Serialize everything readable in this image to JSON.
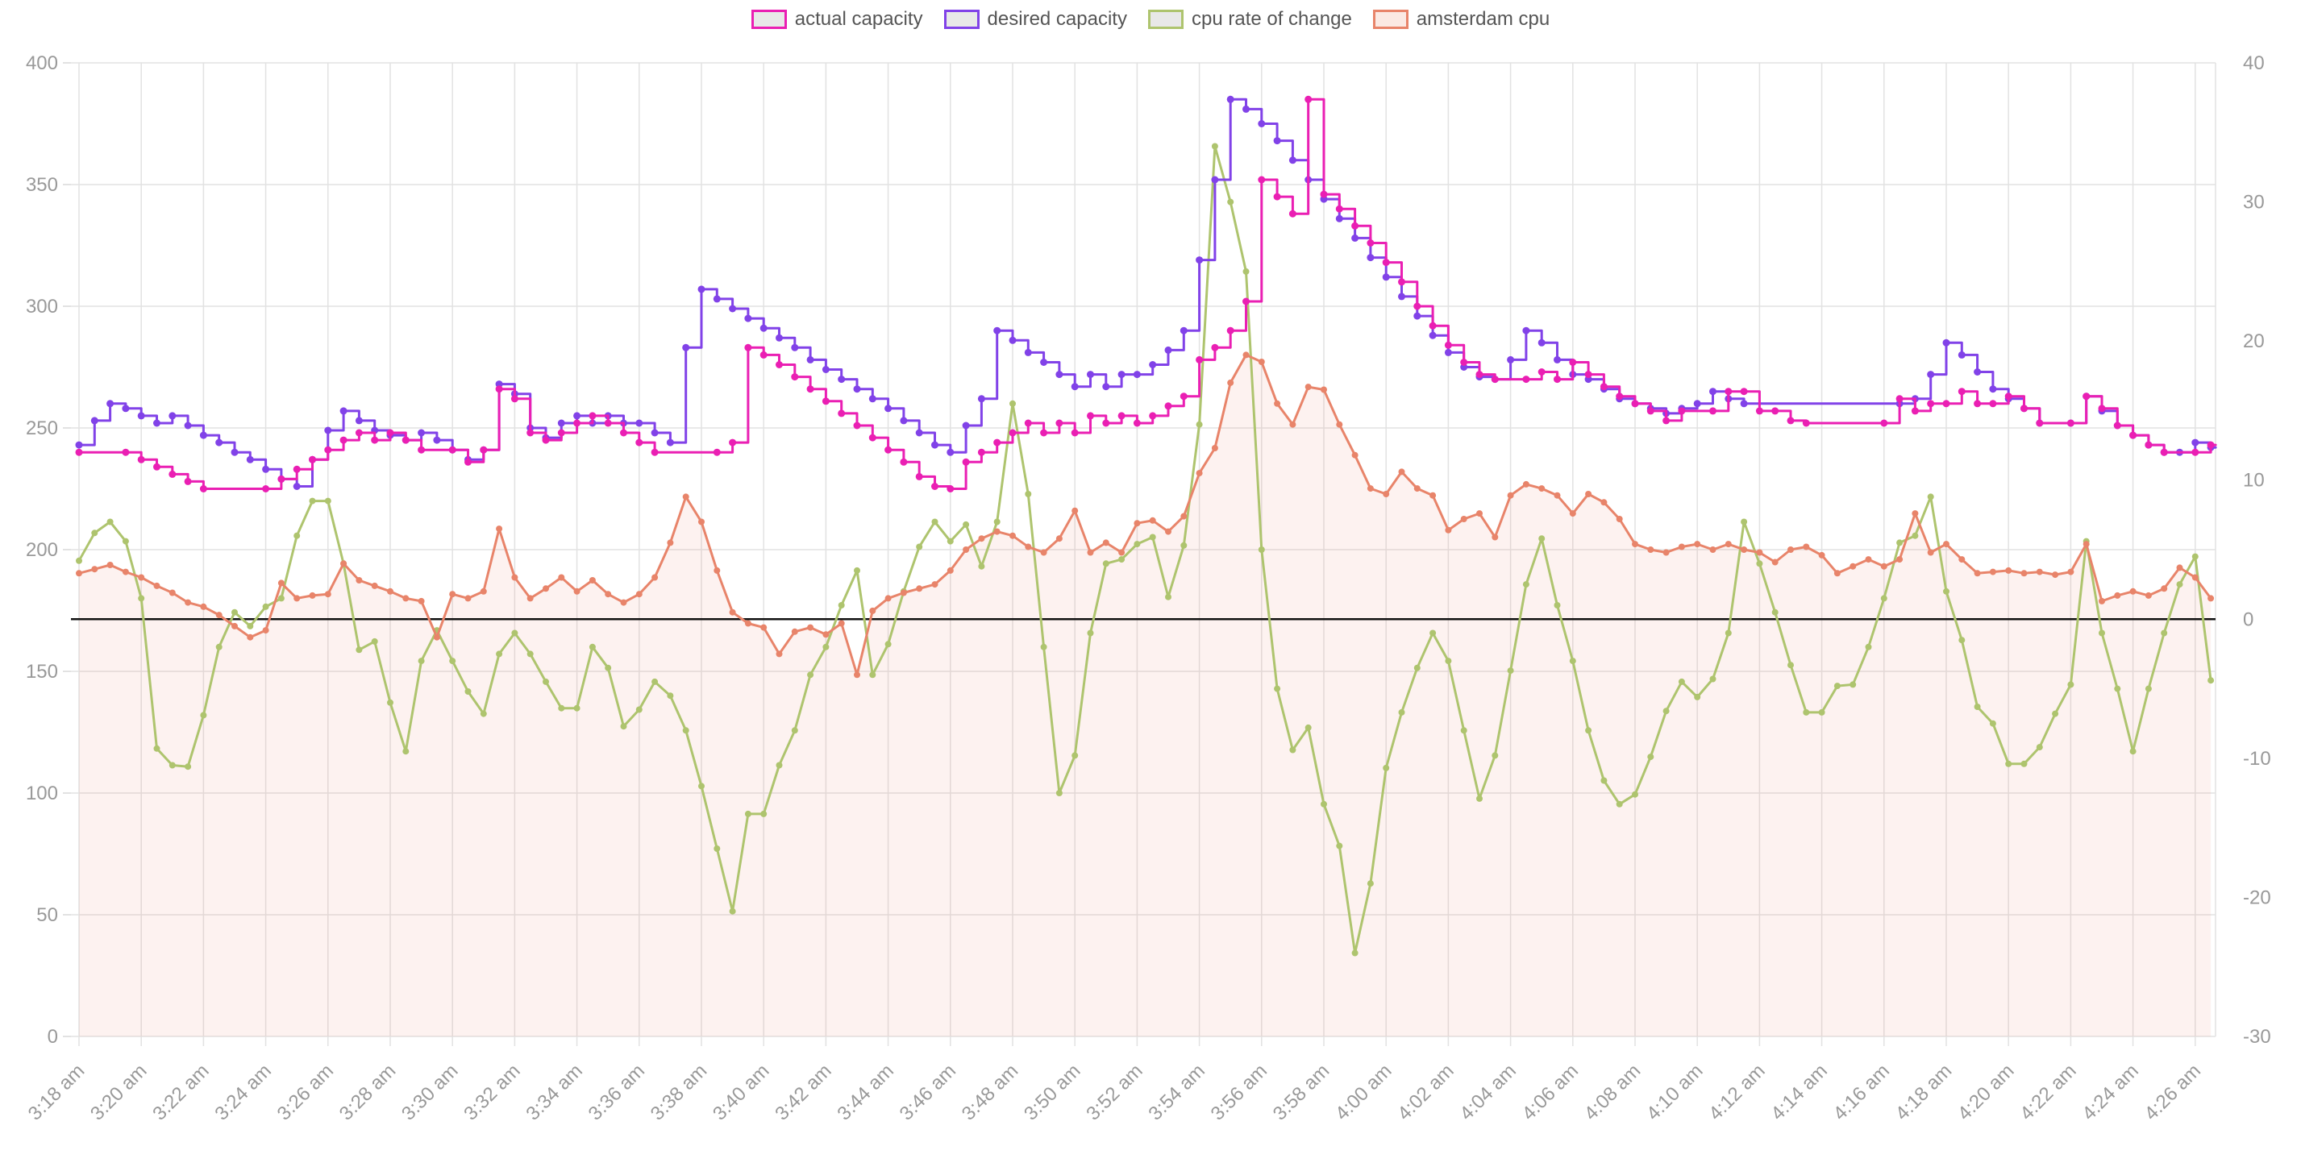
{
  "legend": {
    "items": [
      {
        "id": "actual",
        "label": "actual capacity",
        "color": "#ea1fb3",
        "swatch_bg": "#e8e8e8"
      },
      {
        "id": "desired",
        "label": "desired capacity",
        "color": "#8142e8",
        "swatch_bg": "#e8e8e8"
      },
      {
        "id": "cpu_rate",
        "label": "cpu rate of change",
        "color": "#aec46e",
        "swatch_bg": "#e8e8e8"
      },
      {
        "id": "amsterdam",
        "label": "amsterdam cpu",
        "color": "#e8846a",
        "swatch_bg": "#fbe9e3"
      }
    ]
  },
  "colors": {
    "grid": "#e2e2e2",
    "zero_line": "#111111",
    "axis_text": "#999999",
    "area_fill": "rgba(232,132,106,0.10)"
  },
  "chart_data": {
    "type": "line",
    "title": "",
    "x_start_label": "3:18 am",
    "x_interval_seconds": 30,
    "x_tick_labels": [
      "3:18 am",
      "3:20 am",
      "3:22 am",
      "3:24 am",
      "3:26 am",
      "3:28 am",
      "3:30 am",
      "3:32 am",
      "3:34 am",
      "3:36 am",
      "3:38 am",
      "3:40 am",
      "3:42 am",
      "3:44 am",
      "3:46 am",
      "3:48 am",
      "3:50 am",
      "3:52 am",
      "3:54 am",
      "3:56 am",
      "3:58 am",
      "4:00 am",
      "4:02 am",
      "4:04 am",
      "4:06 am",
      "4:08 am",
      "4:10 am",
      "4:12 am",
      "4:14 am",
      "4:16 am",
      "4:18 am",
      "4:20 am",
      "4:22 am",
      "4:24 am",
      "4:26 am"
    ],
    "ylim_left": [
      0,
      400
    ],
    "yticks_left": [
      0,
      50,
      100,
      150,
      200,
      250,
      300,
      350,
      400
    ],
    "ylim_right": [
      -30,
      40
    ],
    "yticks_right": [
      -30,
      -20,
      -10,
      0,
      10,
      20,
      30,
      40
    ],
    "grid": true,
    "zero_line_right": 0,
    "legend_position": "top-center",
    "series": [
      {
        "name": "actual capacity",
        "axis": "left",
        "style": "step",
        "color": "#ea1fb3",
        "values": [
          240,
          240,
          240,
          240,
          237,
          234,
          231,
          228,
          225,
          225,
          225,
          225,
          225,
          229,
          233,
          237,
          241,
          245,
          248,
          245,
          248,
          245,
          241,
          241,
          241,
          236,
          241,
          266,
          262,
          248,
          245,
          248,
          252,
          255,
          252,
          248,
          244,
          240,
          240,
          240,
          240,
          240,
          244,
          283,
          280,
          276,
          271,
          266,
          261,
          256,
          251,
          246,
          241,
          236,
          230,
          226,
          225,
          236,
          240,
          244,
          248,
          252,
          248,
          252,
          248,
          255,
          252,
          255,
          252,
          255,
          259,
          263,
          278,
          283,
          290,
          302,
          352,
          345,
          338,
          385,
          346,
          340,
          333,
          326,
          318,
          310,
          300,
          292,
          284,
          277,
          272,
          270,
          270,
          270,
          273,
          270,
          277,
          272,
          267,
          263,
          260,
          257,
          253,
          257,
          257,
          257,
          265,
          265,
          257,
          257,
          253,
          252,
          252,
          252,
          252,
          252,
          252,
          262,
          257,
          260,
          260,
          265,
          260,
          260,
          263,
          258,
          252,
          252,
          252,
          263,
          258,
          251,
          247,
          243,
          240,
          240,
          240,
          243
        ]
      },
      {
        "name": "desired capacity",
        "axis": "left",
        "style": "step",
        "color": "#8142e8",
        "values": [
          243,
          253,
          260,
          258,
          255,
          252,
          255,
          251,
          247,
          244,
          240,
          237,
          233,
          229,
          226,
          237,
          249,
          257,
          253,
          249,
          247,
          245,
          248,
          245,
          241,
          237,
          241,
          268,
          264,
          250,
          246,
          252,
          255,
          252,
          255,
          252,
          252,
          248,
          244,
          283,
          307,
          303,
          299,
          295,
          291,
          287,
          283,
          278,
          274,
          270,
          266,
          262,
          258,
          253,
          248,
          243,
          240,
          251,
          262,
          290,
          286,
          281,
          277,
          272,
          267,
          272,
          267,
          272,
          272,
          276,
          282,
          290,
          319,
          352,
          385,
          381,
          375,
          368,
          360,
          352,
          344,
          336,
          328,
          320,
          312,
          304,
          296,
          288,
          281,
          275,
          271,
          270,
          278,
          290,
          285,
          278,
          272,
          270,
          266,
          262,
          260,
          258,
          256,
          258,
          260,
          265,
          262,
          260,
          260,
          260,
          260,
          260,
          260,
          260,
          260,
          260,
          260,
          260,
          262,
          272,
          285,
          280,
          273,
          266,
          262,
          258,
          252,
          252,
          252,
          263,
          257,
          251,
          247,
          243,
          240,
          240,
          244,
          242
        ]
      },
      {
        "name": "cpu rate of change",
        "axis": "right",
        "style": "line",
        "color": "#aec46e",
        "values": [
          4.2,
          6.2,
          7,
          5.6,
          1.5,
          -9.3,
          -10.5,
          -10.6,
          -6.9,
          -2,
          0.5,
          -0.5,
          0.9,
          1.5,
          6,
          8.5,
          8.5,
          4,
          -2.2,
          -1.6,
          -6,
          -9.5,
          -3,
          -0.8,
          -3,
          -5.2,
          -6.8,
          -2.5,
          -1,
          -2.5,
          -4.5,
          -6.4,
          -6.4,
          -2,
          -3.5,
          -7.7,
          -6.5,
          -4.5,
          -5.5,
          -8,
          -12,
          -16.5,
          -21,
          -14,
          -14,
          -10.5,
          -8,
          -4,
          -2,
          1,
          3.5,
          -4,
          -1.8,
          2,
          5.2,
          7,
          5.6,
          6.8,
          3.8,
          7,
          15.5,
          9,
          -2,
          -12.5,
          -9.8,
          -1,
          4,
          4.3,
          5.4,
          5.9,
          1.6,
          5.3,
          14,
          34,
          30,
          25,
          5,
          -5,
          -9.4,
          -7.8,
          -13.3,
          -16.3,
          -24,
          -19,
          -10.7,
          -6.7,
          -3.5,
          -1,
          -3,
          -8,
          -12.9,
          -9.8,
          -3.7,
          2.5,
          5.8,
          1,
          -3,
          -8,
          -11.6,
          -13.3,
          -12.6,
          -9.9,
          -6.6,
          -4.5,
          -5.6,
          -4.3,
          -1,
          7,
          4,
          0.5,
          -3.3,
          -6.7,
          -6.7,
          -4.8,
          -4.7,
          -2,
          1.5,
          5.5,
          6,
          8.8,
          2,
          -1.5,
          -6.3,
          -7.5,
          -10.4,
          -10.4,
          -9.2,
          -6.8,
          -4.7,
          5.6,
          -1,
          -5,
          -9.5,
          -5,
          -1,
          2.5,
          4.5,
          -4.4
        ]
      },
      {
        "name": "amsterdam cpu",
        "axis": "right",
        "style": "line",
        "color": "#e8846a",
        "fill": true,
        "values": [
          3.3,
          3.6,
          3.9,
          3.4,
          3,
          2.4,
          1.9,
          1.2,
          0.9,
          0.3,
          -0.5,
          -1.3,
          -0.8,
          2.6,
          1.5,
          1.7,
          1.8,
          4,
          2.8,
          2.4,
          2,
          1.5,
          1.3,
          -1.3,
          1.8,
          1.5,
          2,
          6.5,
          3,
          1.5,
          2.2,
          3,
          2,
          2.8,
          1.8,
          1.2,
          1.8,
          3,
          5.5,
          8.8,
          7,
          3.5,
          0.5,
          -0.3,
          -0.6,
          -2.5,
          -0.9,
          -0.6,
          -1.1,
          -0.3,
          -4,
          0.6,
          1.5,
          1.9,
          2.2,
          2.5,
          3.5,
          5,
          5.8,
          6.3,
          6,
          5.2,
          4.8,
          5.8,
          7.8,
          4.8,
          5.5,
          4.8,
          6.9,
          7.1,
          6.3,
          7.4,
          10.5,
          12.3,
          17,
          19,
          18.5,
          15.5,
          14,
          16.7,
          16.5,
          14,
          11.8,
          9.4,
          9,
          10.6,
          9.4,
          8.9,
          6.4,
          7.2,
          7.6,
          5.9,
          8.9,
          9.7,
          9.4,
          8.9,
          7.6,
          9,
          8.4,
          7.2,
          5.4,
          5,
          4.8,
          5.2,
          5.4,
          5,
          5.4,
          5,
          4.8,
          4.1,
          5,
          5.2,
          4.6,
          3.3,
          3.8,
          4.3,
          3.8,
          4.3,
          7.6,
          4.8,
          5.4,
          4.3,
          3.3,
          3.4,
          3.5,
          3.3,
          3.4,
          3.2,
          3.4,
          5.4,
          1.3,
          1.7,
          2,
          1.7,
          2.2,
          3.7,
          3,
          1.5
        ]
      }
    ]
  }
}
